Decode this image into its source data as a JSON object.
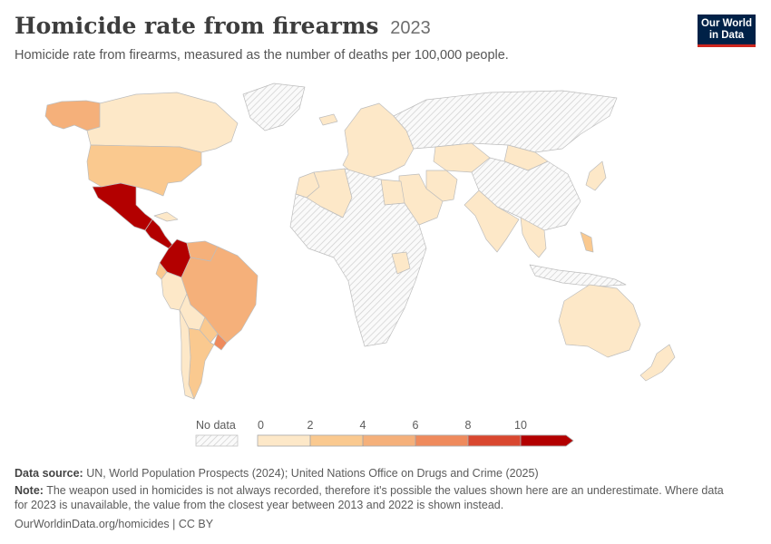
{
  "title": "Homicide rate from firearms",
  "year": "2023",
  "subtitle": "Homicide rate from firearms, measured as the number of deaths per 100,000 people.",
  "logo": {
    "line1": "Our World",
    "line2": "in Data"
  },
  "colors": {
    "no_data": "#e8e8e8",
    "border": "#bdbdbd",
    "bins": [
      "#fde8c8",
      "#fac98f",
      "#f5b07a",
      "#ef8a5c",
      "#d9472f",
      "#b30000"
    ]
  },
  "legend": {
    "no_data_label": "No data",
    "ticks": [
      "0",
      "2",
      "4",
      "6",
      "8",
      "10"
    ]
  },
  "map_data": {
    "unit": "deaths per 100,000",
    "bins": [
      [
        0,
        2
      ],
      [
        2,
        4
      ],
      [
        4,
        6
      ],
      [
        6,
        8
      ],
      [
        8,
        10
      ],
      [
        10,
        null
      ]
    ],
    "regions": [
      {
        "name": "Alaska",
        "bin": 2
      },
      {
        "name": "Canada",
        "bin": 0
      },
      {
        "name": "United States",
        "bin": 1
      },
      {
        "name": "Mexico",
        "bin": 5
      },
      {
        "name": "Central America",
        "bin": 5
      },
      {
        "name": "Cuba",
        "bin": 0
      },
      {
        "name": "Colombia",
        "bin": 5
      },
      {
        "name": "Venezuela",
        "bin": 2
      },
      {
        "name": "Ecuador",
        "bin": 1
      },
      {
        "name": "Peru",
        "bin": 0
      },
      {
        "name": "Brazil",
        "bin": 2
      },
      {
        "name": "Bolivia",
        "bin": 0
      },
      {
        "name": "Paraguay",
        "bin": 1
      },
      {
        "name": "Uruguay",
        "bin": 3
      },
      {
        "name": "Argentina",
        "bin": 1
      },
      {
        "name": "Chile",
        "bin": 0
      },
      {
        "name": "Greenland",
        "bin": null
      },
      {
        "name": "Iceland",
        "bin": 0
      },
      {
        "name": "Europe",
        "bin": 0
      },
      {
        "name": "Russia",
        "bin": null
      },
      {
        "name": "Kazakhstan",
        "bin": 0
      },
      {
        "name": "Mongolia",
        "bin": 0
      },
      {
        "name": "China",
        "bin": null
      },
      {
        "name": "Japan",
        "bin": 0
      },
      {
        "name": "Iran",
        "bin": 0
      },
      {
        "name": "Middle East",
        "bin": 0
      },
      {
        "name": "India",
        "bin": 0
      },
      {
        "name": "Southeast Asia",
        "bin": 0
      },
      {
        "name": "Philippines",
        "bin": 1
      },
      {
        "name": "Indonesia",
        "bin": null
      },
      {
        "name": "Algeria",
        "bin": 0
      },
      {
        "name": "Morocco",
        "bin": 0
      },
      {
        "name": "Egypt",
        "bin": 0
      },
      {
        "name": "Africa",
        "bin": null
      },
      {
        "name": "Kenya",
        "bin": 0
      },
      {
        "name": "Australia",
        "bin": 0
      },
      {
        "name": "New Zealand",
        "bin": 0
      }
    ]
  },
  "footer": {
    "source_label": "Data source:",
    "source_text": "UN, World Population Prospects (2024); United Nations Office on Drugs and Crime (2025)",
    "note_label": "Note:",
    "note_line1": "The weapon used in homicides is not always recorded, therefore it's possible the values shown here are an underestimate. Where data",
    "note_line2": "for 2023 is unavailable, the value from the closest year between 2013 and 2022 is shown instead.",
    "url": "OurWorldinData.org/homicides | CC BY"
  }
}
